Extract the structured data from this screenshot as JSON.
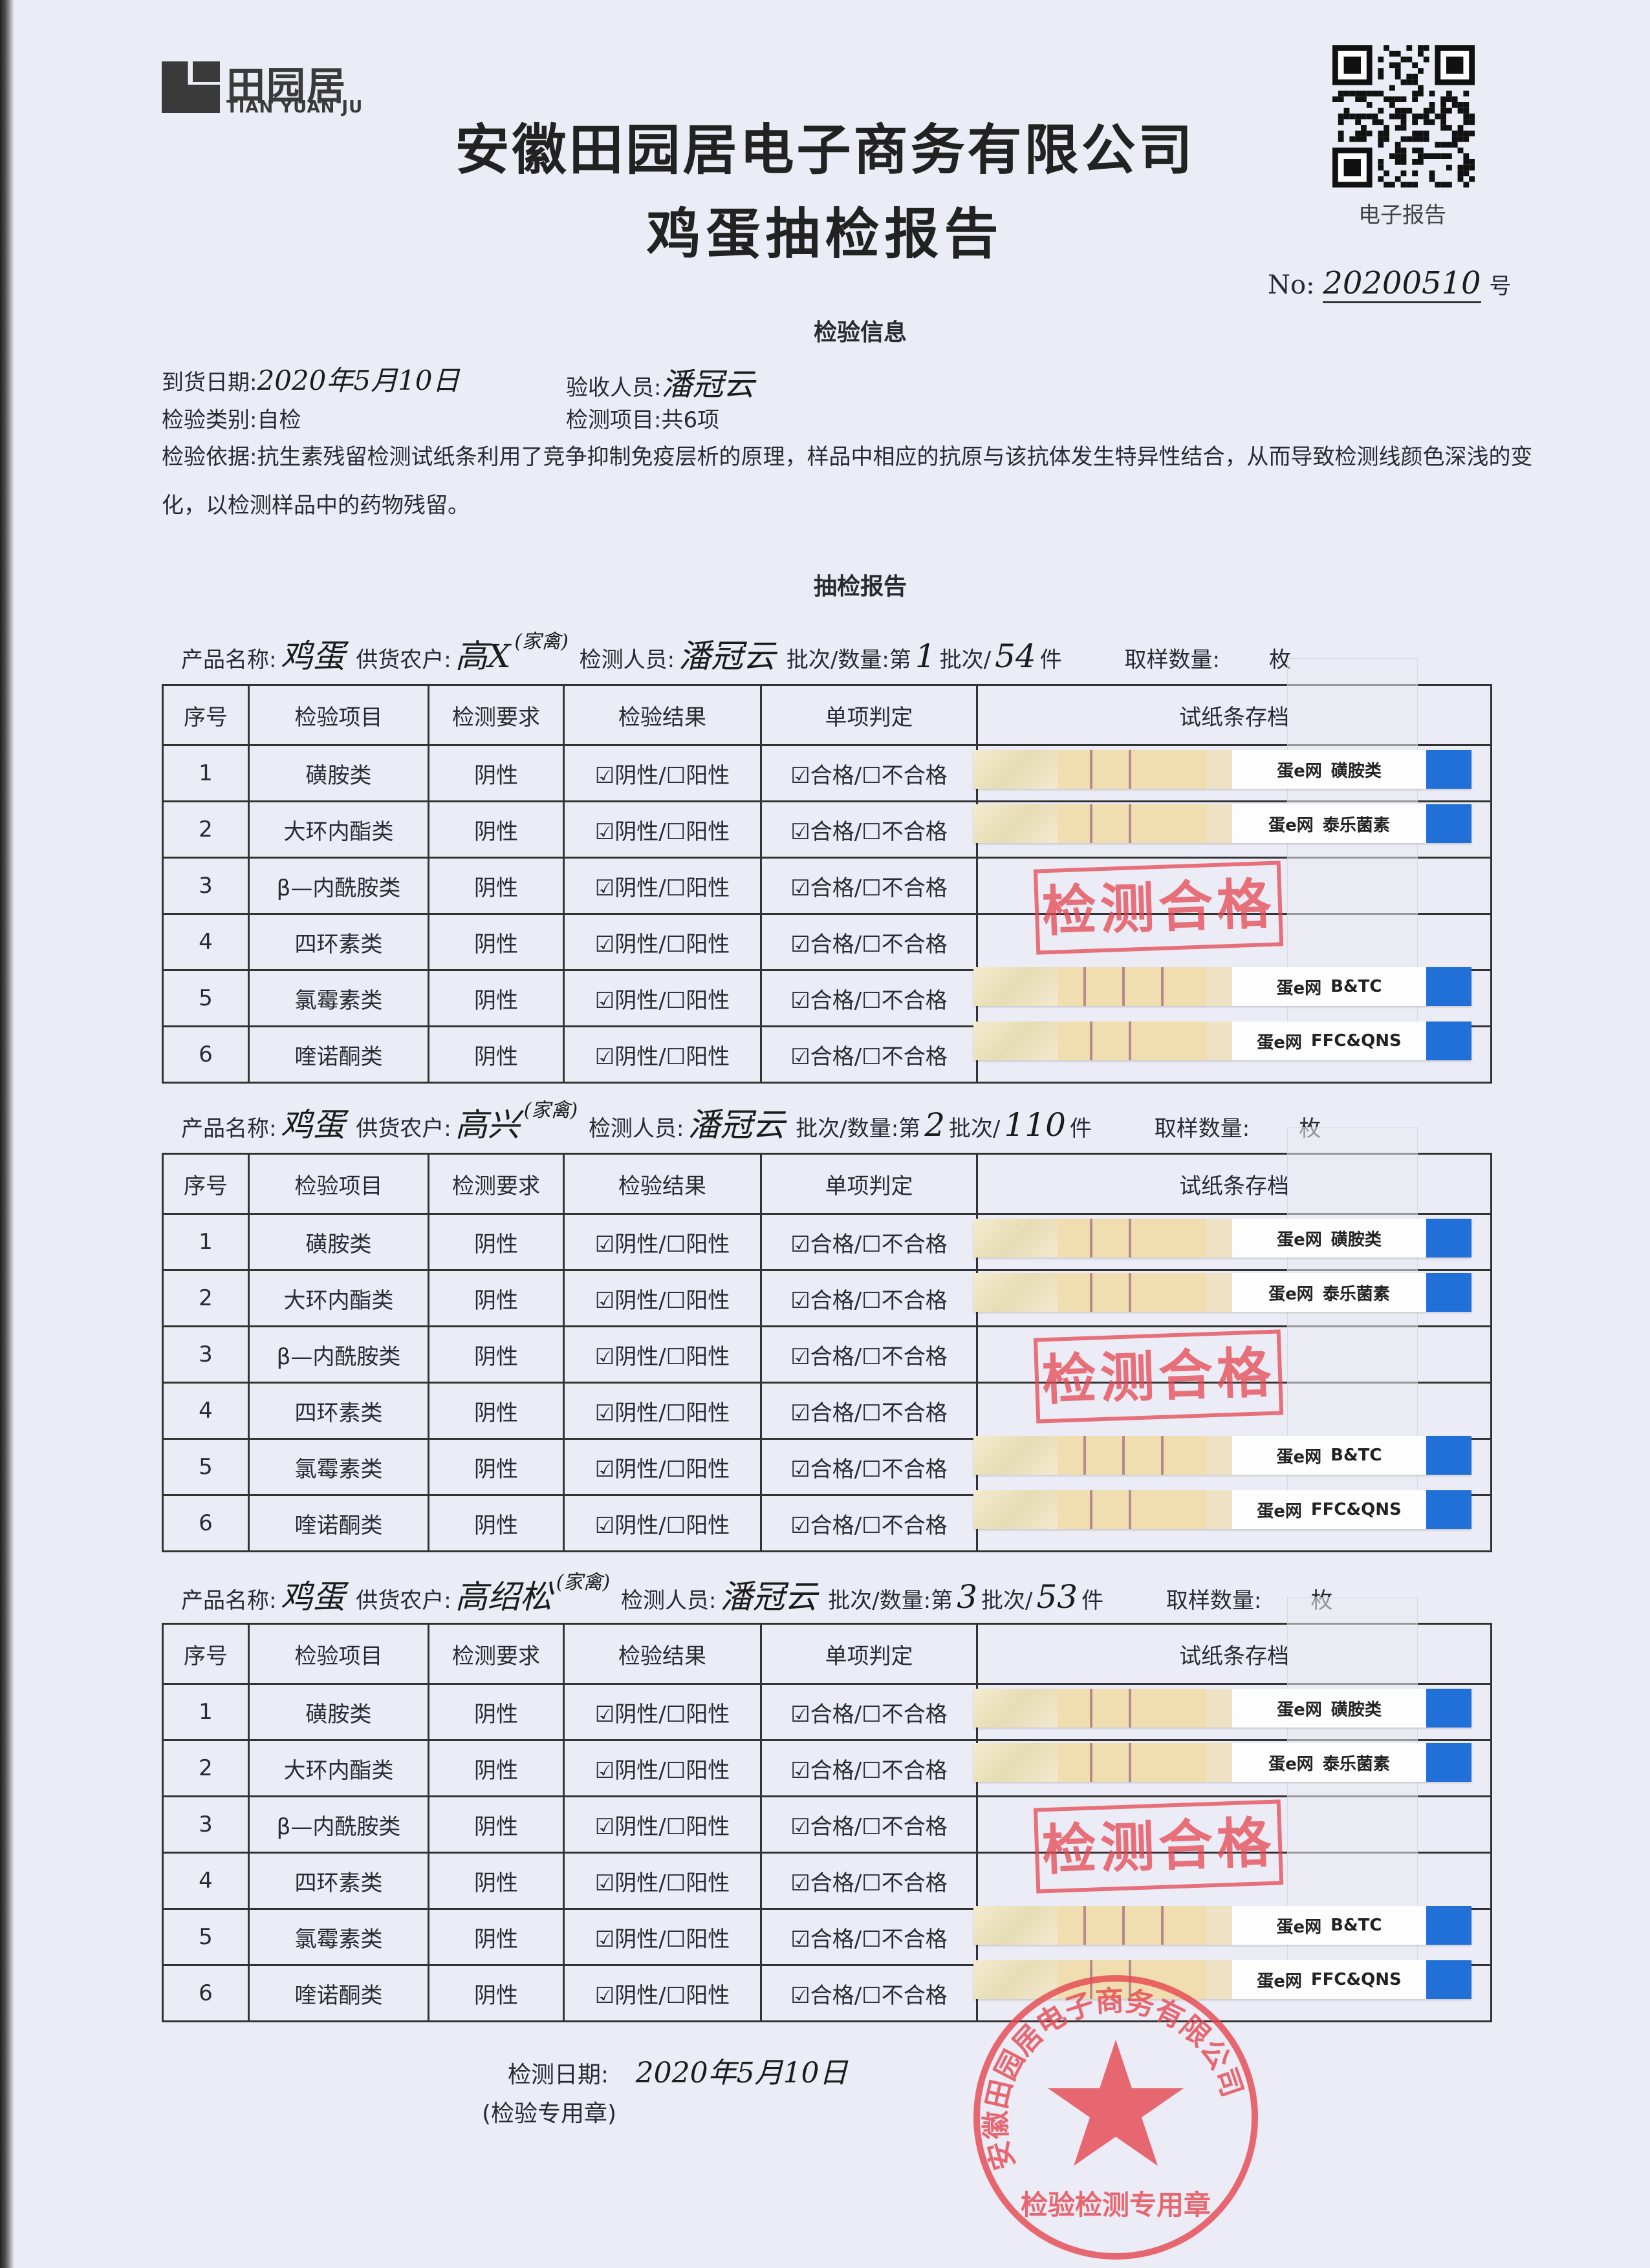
{
  "logo": {
    "cn": "田园居",
    "en": "TIAN YUAN JU"
  },
  "qr": {
    "label": "电子报告"
  },
  "title": {
    "company": "安徽田园居电子商务有限公司",
    "report": "鸡蛋抽检报告"
  },
  "number": {
    "label": "No:",
    "value": "20200510",
    "suffix": "号"
  },
  "info": {
    "heading": "检验信息",
    "arrival_label": "到货日期:",
    "arrival_value": "2020年5月10日",
    "receiver_label": "验收人员:",
    "receiver_value": "潘冠云",
    "category_label": "检验类别:自检",
    "items_label": "检测项目:共6项",
    "basis": "检验依据:抗生素残留检测试纸条利用了竞争抑制免疫层析的原理，样品中相应的抗原与该抗体发生特异性结合，从而导致检测线颜色深浅的变化，以检测样品中的药物残留。"
  },
  "report_heading": "抽检报告",
  "labels": {
    "product": "产品名称:",
    "farmer": "供货农户:",
    "inspector": "检测人员:",
    "batch": "批次/数量:第",
    "batch_mid": "批次/",
    "unit": "件",
    "sample": "取样数量:",
    "sample_unit": "枚",
    "farmer_note": "(家禽)"
  },
  "columns": [
    "序号",
    "检验项目",
    "检测要求",
    "检验结果",
    "单项判定",
    "试纸条存档"
  ],
  "rows": [
    {
      "no": "1",
      "item": "磺胺类",
      "req": "阴性"
    },
    {
      "no": "2",
      "item": "大环内酯类",
      "req": "阴性"
    },
    {
      "no": "3",
      "item": "β—内酰胺类",
      "req": "阴性"
    },
    {
      "no": "4",
      "item": "四环素类",
      "req": "阴性"
    },
    {
      "no": "5",
      "item": "氯霉素类",
      "req": "阴性"
    },
    {
      "no": "6",
      "item": "喹诺酮类",
      "req": "阴性"
    }
  ],
  "result_text": "☑阴性/☐阳性",
  "judge_text": "☑合格/☐不合格",
  "pass_stamp": "检测合格",
  "strip_brand": "蛋e网",
  "strip_names": [
    "磺胺类",
    "泰乐菌素",
    "B&TC",
    "FFC&QNS"
  ],
  "batches": [
    {
      "product": "鸡蛋",
      "farmer": "高X",
      "inspector": "潘冠云",
      "batch_no": "1",
      "qty": "54"
    },
    {
      "product": "鸡蛋",
      "farmer": "高兴",
      "inspector": "潘冠云",
      "batch_no": "2",
      "qty": "110"
    },
    {
      "product": "鸡蛋",
      "farmer": "高绍松",
      "inspector": "潘冠云",
      "batch_no": "3",
      "qty": "53"
    }
  ],
  "footer": {
    "date_label": "检测日期:",
    "date_value": "2020年5月10日",
    "seal_label": "(检验专用章)"
  },
  "seal": {
    "text": "安徽田园居电子商务有限公司",
    "sub": "检验检测专用章"
  },
  "colors": {
    "stamp_red": "#e64650",
    "strip_blue": "#2070d8"
  }
}
